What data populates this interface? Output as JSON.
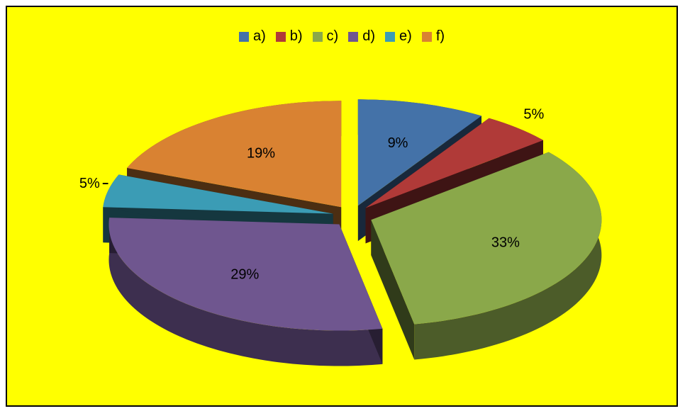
{
  "chart_data": {
    "type": "pie",
    "style": "3d-exploded",
    "legend_position": "top",
    "categories": [
      "a)",
      "b)",
      "c)",
      "d)",
      "e)",
      "f)"
    ],
    "values": [
      9,
      5,
      33,
      29,
      5,
      19
    ],
    "labels": [
      "9%",
      "5%",
      "33%",
      "29%",
      "5%",
      "19%"
    ],
    "colors": [
      "#4472a8",
      "#b03a38",
      "#8aa84a",
      "#6f568f",
      "#3b9cb5",
      "#d98232"
    ],
    "background": "#ffff00"
  }
}
